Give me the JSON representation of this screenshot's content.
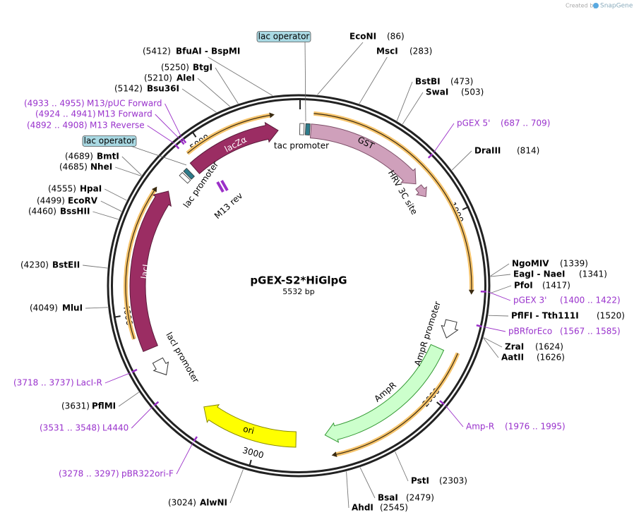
{
  "credit": {
    "prefix": "Created by",
    "brand": "SnapGene"
  },
  "map": {
    "name": "pGEX-S2*HiGlpG",
    "length": "5532 bp"
  },
  "ruler": [
    1000,
    2000,
    3000,
    4000,
    5000
  ],
  "features": [
    "GST",
    "HRV 3C site",
    "lacZα",
    "lacI",
    "ori",
    "AmpR",
    "AmpR promoter",
    "lacI promoter",
    "tac promoter",
    "lac promoter",
    "M13 rev",
    "lac operator",
    "lac operator"
  ],
  "sites": [
    {
      "name": "EcoNI",
      "position": "(86)"
    },
    {
      "name": "MscI",
      "position": "(283)"
    },
    {
      "name": "BstBI",
      "position": "(473)"
    },
    {
      "name": "SwaI",
      "position": "(503)"
    },
    {
      "name": "DraIII",
      "position": "(814)"
    },
    {
      "name": "NgoMIV",
      "position": "(1339)"
    },
    {
      "name": "EagI - NaeI",
      "position": "(1341)"
    },
    {
      "name": "PfoI",
      "position": "(1417)"
    },
    {
      "name": "PflFI - Tth111I",
      "position": "(1520)"
    },
    {
      "name": "ZraI",
      "position": "(1624)"
    },
    {
      "name": "AatII",
      "position": "(1626)"
    },
    {
      "name": "PstI",
      "position": "(2303)"
    },
    {
      "name": "BsaI",
      "position": "(2479)"
    },
    {
      "name": "AhdI",
      "position": "(2545)"
    },
    {
      "name": "AlwNI",
      "position": "(3024)"
    },
    {
      "name": "PflMI",
      "position": "(3631)"
    },
    {
      "name": "MluI",
      "position": "(4049)"
    },
    {
      "name": "BstEII",
      "position": "(4230)"
    },
    {
      "name": "BssHII",
      "position": "(4460)"
    },
    {
      "name": "EcoRV",
      "position": "(4499)"
    },
    {
      "name": "HpaI",
      "position": "(4555)"
    },
    {
      "name": "NheI",
      "position": "(4685)"
    },
    {
      "name": "BmtI",
      "position": "(4689)"
    },
    {
      "name": "Bsu36I",
      "position": "(5142)"
    },
    {
      "name": "AleI",
      "position": "(5210)"
    },
    {
      "name": "BtgI",
      "position": "(5250)"
    },
    {
      "name": "BfuAI - BspMI",
      "position": "(5412)"
    }
  ],
  "primers": [
    {
      "name": "pGEX 5'",
      "range": "(687 .. 709)"
    },
    {
      "name": "pGEX 3'",
      "range": "(1400 .. 1422)"
    },
    {
      "name": "pBRforEco",
      "range": "(1567 .. 1585)"
    },
    {
      "name": "Amp-R",
      "range": "(1976 .. 1995)"
    },
    {
      "name": "pBR322ori-F",
      "range": "(3278 .. 3297)"
    },
    {
      "name": "L4440",
      "range": "(3531 .. 3548)"
    },
    {
      "name": "LacI-R",
      "range": "(3718 .. 3737)"
    },
    {
      "name": "M13 Reverse",
      "range": "(4892 .. 4908)"
    },
    {
      "name": "M13 Forward",
      "range": "(4924 .. 4941)"
    },
    {
      "name": "M13/pUC Forward",
      "range": "(4933 .. 4955)"
    }
  ]
}
